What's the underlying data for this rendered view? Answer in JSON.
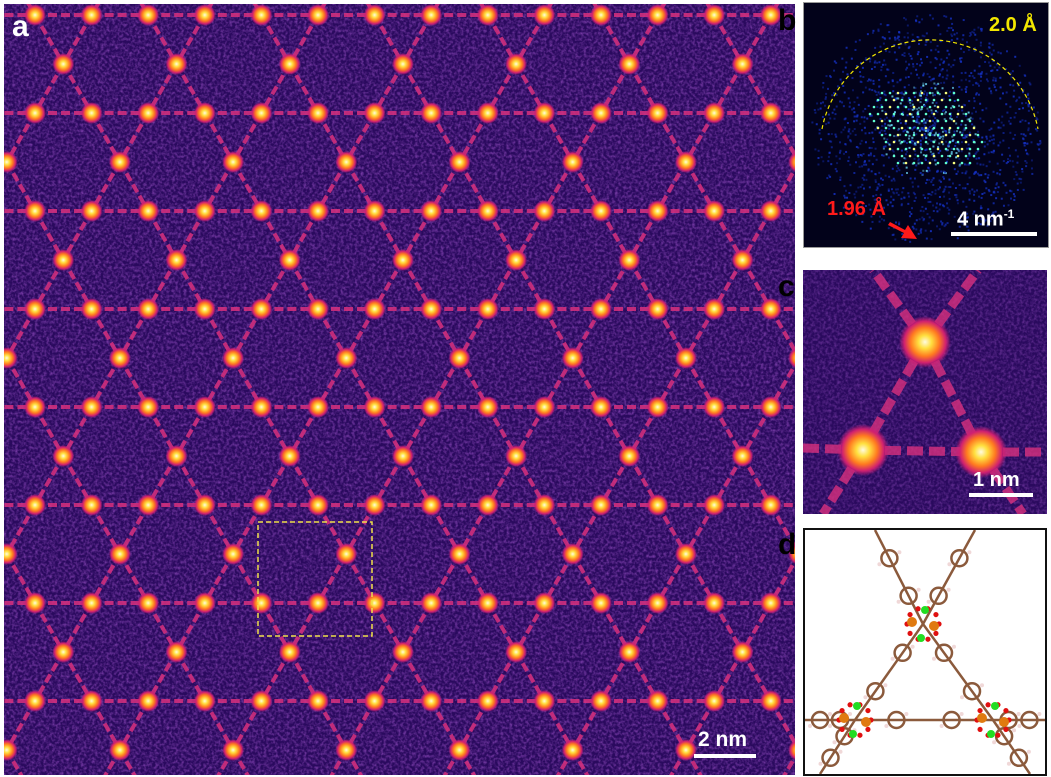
{
  "panels": {
    "a": {
      "label": "a",
      "scale_bar": "2 nm",
      "label_color": "#ffffff",
      "background": "#2a0a5e",
      "bond_color": "#d8307e",
      "highlight_box_color": "#f0e04a"
    },
    "b": {
      "label": "b",
      "ring_label": "2.0 Å",
      "ring_color": "#f2e600",
      "resolution_label": "1.96 Å",
      "resolution_color": "#ff1a1a",
      "scale_bar_value": "4 nm",
      "scale_bar_sup": "-1",
      "background": "#02021a"
    },
    "c": {
      "label": "c",
      "scale_bar": "1 nm"
    },
    "d": {
      "label": "d",
      "atom_colors": {
        "carbon": "#8b5a3c",
        "oxygen": "#e01010",
        "metal": "#e07a10",
        "green": "#22dd22",
        "hydrogen": "#f0d8d8"
      }
    }
  }
}
